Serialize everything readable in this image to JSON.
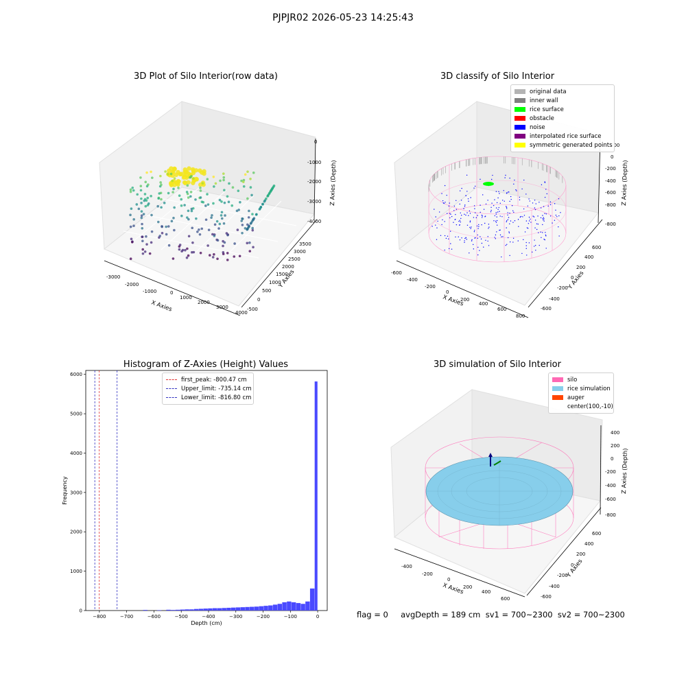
{
  "suptitle": "PJPJR02 2026-05-23 14:25:43",
  "status_line": "flag = 0     avgDepth = 189 cm  sv1 = 700~2300  sv2 = 700~2300",
  "colors": {
    "rice": "#87CEEB",
    "silo": "#ff69b4",
    "hist": "#4a4aff",
    "noise": "#0000ff",
    "surface": "#00ff00"
  },
  "chart_data": [
    {
      "type": "scatter",
      "title": "3D Plot of Silo Interior(row data)",
      "xlabel": "X Axies",
      "ylabel": "Y Axies",
      "zlabel": "Z Axies (Depth)",
      "x_ticks": [
        "-3000",
        "-2000",
        "-1000",
        "0",
        "1000",
        "2000",
        "3000",
        "4000"
      ],
      "y_ticks": [
        "-500",
        "0",
        "500",
        "1000",
        "1500",
        "2000",
        "2500",
        "3000",
        "3500"
      ],
      "z_ticks": [
        "0",
        "-1000",
        "-2000",
        "-3000",
        "-4000"
      ],
      "colormap": "viridis"
    },
    {
      "type": "scatter",
      "title": "3D classify of Silo Interior",
      "xlabel": "X Axies",
      "ylabel": "Y Axies",
      "zlabel": "Z Axies (Depth)",
      "x_ticks": [
        "-600",
        "-400",
        "-200",
        "0",
        "200",
        "400",
        "600",
        "800"
      ],
      "y_ticks": [
        "-600",
        "-400",
        "-200",
        "0",
        "200",
        "400",
        "600"
      ],
      "z_ticks": [
        "0",
        "-200",
        "-400",
        "-600",
        "-800"
      ],
      "z_tick_top": "200",
      "legend": [
        {
          "label": "original data",
          "color": "#b4b4b4"
        },
        {
          "label": "inner wall",
          "color": "#808080"
        },
        {
          "label": "rice surface",
          "color": "#00ff00"
        },
        {
          "label": "obstacle",
          "color": "#ff0000"
        },
        {
          "label": "noise",
          "color": "#0000ff"
        },
        {
          "label": "interpolated rice surface",
          "color": "#800080"
        },
        {
          "label": "symmetric generated points",
          "color": "#ffff00"
        }
      ]
    },
    {
      "type": "bar",
      "title": "Histogram of Z-Axies (Height) Values",
      "xlabel": "Depth (cm)",
      "ylabel": "Frequency",
      "xlim": [
        -850,
        35
      ],
      "ylim": [
        0,
        6100
      ],
      "x_ticks": [
        -800,
        -700,
        -600,
        -500,
        -400,
        -300,
        -200,
        -100,
        0
      ],
      "y_ticks": [
        0,
        1000,
        2000,
        3000,
        4000,
        5000,
        6000
      ],
      "bins": [
        [
          -640,
          -623,
          15
        ],
        [
          -623,
          -606,
          0
        ],
        [
          -606,
          -589,
          0
        ],
        [
          -589,
          -572,
          10
        ],
        [
          -572,
          -555,
          0
        ],
        [
          -555,
          -538,
          20
        ],
        [
          -538,
          -521,
          15
        ],
        [
          -521,
          -504,
          20
        ],
        [
          -504,
          -487,
          25
        ],
        [
          -487,
          -470,
          30
        ],
        [
          -470,
          -453,
          30
        ],
        [
          -453,
          -436,
          40
        ],
        [
          -436,
          -419,
          45
        ],
        [
          -419,
          -402,
          50
        ],
        [
          -402,
          -385,
          55
        ],
        [
          -385,
          -368,
          60
        ],
        [
          -368,
          -351,
          60
        ],
        [
          -351,
          -334,
          65
        ],
        [
          -334,
          -317,
          70
        ],
        [
          -317,
          -300,
          75
        ],
        [
          -300,
          -283,
          80
        ],
        [
          -283,
          -266,
          85
        ],
        [
          -266,
          -249,
          90
        ],
        [
          -249,
          -232,
          95
        ],
        [
          -232,
          -215,
          100
        ],
        [
          -215,
          -198,
          110
        ],
        [
          -198,
          -181,
          120
        ],
        [
          -181,
          -164,
          130
        ],
        [
          -164,
          -147,
          150
        ],
        [
          -147,
          -130,
          170
        ],
        [
          -130,
          -113,
          210
        ],
        [
          -113,
          -96,
          230
        ],
        [
          -96,
          -79,
          210
        ],
        [
          -79,
          -62,
          190
        ],
        [
          -62,
          -45,
          170
        ],
        [
          -45,
          -28,
          230
        ],
        [
          -28,
          -11,
          560
        ],
        [
          -11,
          0,
          5820
        ]
      ],
      "vlines": [
        {
          "label": "first_peak: -800.47 cm",
          "x": -800.47,
          "color": "#e03030"
        },
        {
          "label": "Upper_limit: -735.14 cm",
          "x": -735.14,
          "color": "#3030c0"
        },
        {
          "label": "Lower_limit: -816.80 cm",
          "x": -816.8,
          "color": "#3030c0"
        }
      ]
    },
    {
      "type": "area",
      "title": "3D simulation of Silo Interior",
      "xlabel": "X Axies",
      "ylabel": "Y Axies",
      "zlabel": "Z Axies (Depth)",
      "x_ticks": [
        "-400",
        "-200",
        "0",
        "200",
        "400",
        "600"
      ],
      "y_ticks": [
        "-600",
        "-400",
        "-200",
        "0",
        "200",
        "400",
        "600"
      ],
      "z_ticks": [
        "400",
        "200",
        "0",
        "-200",
        "-400",
        "-600",
        "-800"
      ],
      "legend": [
        {
          "label": "silo",
          "color": "#ff69b4"
        },
        {
          "label": "rice simulation",
          "color": "#87CEEB"
        },
        {
          "label": "auger",
          "color": "#ff4500"
        },
        {
          "label": "center(100,-10)",
          "color": ""
        }
      ]
    }
  ]
}
